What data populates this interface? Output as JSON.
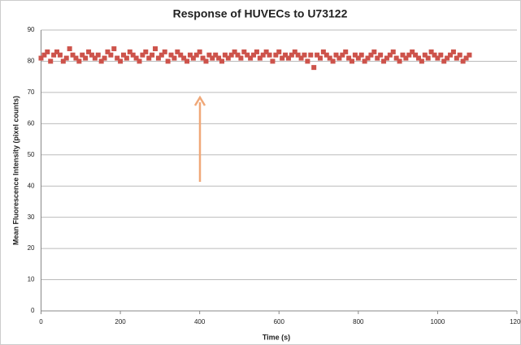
{
  "chart_data": {
    "type": "scatter",
    "title": "Response of HUVECs to U73122",
    "xlabel": "Time (s)",
    "ylabel": "Mean Fluorescence Intensity (pixel counts)",
    "color": "#cd534b",
    "grid": true,
    "xlim": [
      0,
      1200
    ],
    "xticks": [
      0,
      200,
      400,
      600,
      800,
      1000,
      1200
    ],
    "ylim": [
      0,
      90
    ],
    "yticks": [
      0,
      10,
      20,
      30,
      40,
      50,
      60,
      70,
      80,
      90
    ],
    "x": [
      0,
      8,
      16,
      24,
      32,
      40,
      48,
      56,
      64,
      72,
      80,
      88,
      96,
      104,
      112,
      120,
      128,
      136,
      144,
      152,
      160,
      168,
      176,
      184,
      192,
      200,
      208,
      216,
      224,
      232,
      240,
      248,
      256,
      264,
      272,
      280,
      288,
      296,
      304,
      312,
      320,
      328,
      336,
      344,
      352,
      360,
      368,
      376,
      384,
      392,
      400,
      408,
      416,
      424,
      432,
      440,
      448,
      456,
      464,
      472,
      480,
      488,
      496,
      504,
      512,
      520,
      528,
      536,
      544,
      552,
      560,
      568,
      576,
      584,
      592,
      600,
      608,
      616,
      624,
      632,
      640,
      648,
      656,
      664,
      672,
      680,
      688,
      696,
      704,
      712,
      720,
      728,
      736,
      744,
      752,
      760,
      768,
      776,
      784,
      792,
      800,
      808,
      816,
      824,
      832,
      840,
      848,
      856,
      864,
      872,
      880,
      888,
      896,
      904,
      912,
      920,
      928,
      936,
      944,
      952,
      960,
      968,
      976,
      984,
      992,
      1000,
      1008,
      1016,
      1024,
      1032,
      1040,
      1048,
      1056,
      1064,
      1072,
      1080
    ],
    "values": [
      81,
      82,
      83,
      80,
      82,
      83,
      82,
      80,
      81,
      84,
      82,
      81,
      80,
      82,
      81,
      83,
      82,
      81,
      82,
      80,
      81,
      83,
      82,
      84,
      81,
      80,
      82,
      81,
      83,
      82,
      81,
      80,
      82,
      83,
      81,
      82,
      84,
      81,
      82,
      83,
      80,
      82,
      81,
      83,
      82,
      81,
      80,
      82,
      81,
      82,
      83,
      81,
      80,
      82,
      81,
      82,
      81,
      80,
      82,
      81,
      82,
      83,
      82,
      81,
      83,
      82,
      81,
      82,
      83,
      81,
      82,
      83,
      82,
      80,
      82,
      83,
      81,
      82,
      81,
      82,
      83,
      82,
      81,
      82,
      80,
      82,
      78,
      82,
      81,
      83,
      82,
      81,
      80,
      82,
      81,
      82,
      83,
      81,
      80,
      82,
      81,
      82,
      80,
      81,
      82,
      83,
      81,
      82,
      80,
      81,
      82,
      83,
      81,
      80,
      82,
      81,
      82,
      83,
      82,
      81,
      80,
      82,
      81,
      83,
      82,
      81,
      82,
      80,
      81,
      82,
      83,
      81,
      82,
      80,
      81,
      82
    ]
  }
}
